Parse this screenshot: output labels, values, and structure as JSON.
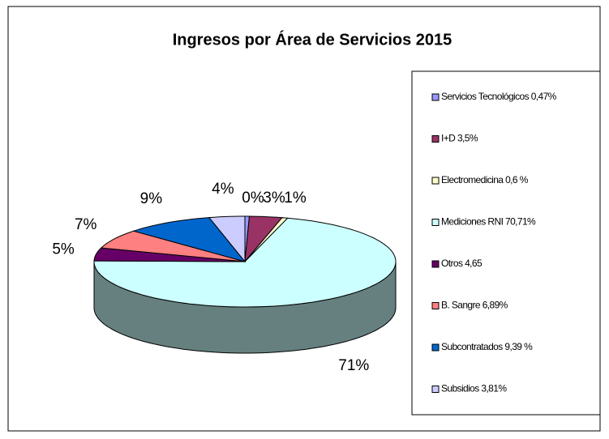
{
  "chart_data": {
    "type": "pie3d",
    "title": "Ingresos por Área de Servicios 2015",
    "categories": [
      "Servicios Tecnológicos 0,47%",
      "I+D 3,5%",
      "Electromedicina 0,6 %",
      "Mediciones RNI 70,71%",
      "Otros 4,65",
      "B. Sangre 6,89%",
      "Subcontratados 9,39 %",
      "Subsidios 3,81%"
    ],
    "values": [
      0.47,
      3.5,
      0.6,
      70.71,
      4.65,
      6.89,
      9.39,
      3.81
    ],
    "value_labels": [
      "0%",
      "3%",
      "1%",
      "71%",
      "5%",
      "7%",
      "9%",
      "4%"
    ],
    "colors": [
      "#9999FF",
      "#993366",
      "#FFFFCC",
      "#CCFFFF",
      "#660066",
      "#FF8080",
      "#0066CC",
      "#CCCCFF"
    ],
    "legend": "right"
  }
}
